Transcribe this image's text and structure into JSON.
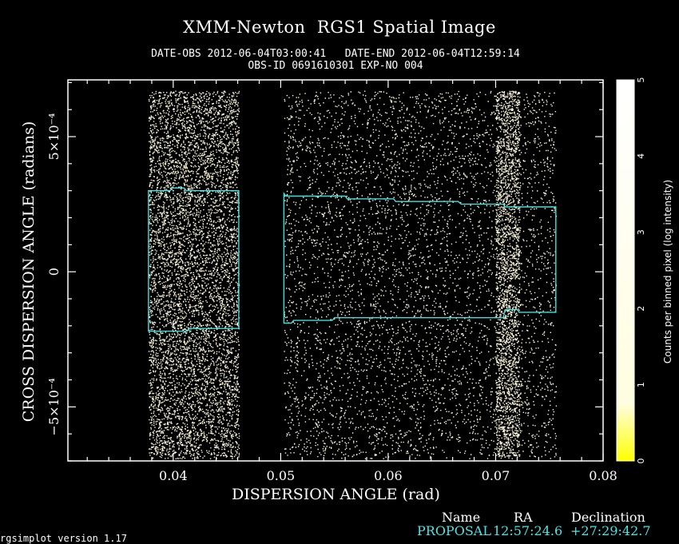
{
  "chart_data": {
    "type": "heatmap",
    "title": "XMM-Newton  RGS1 Spatial Image",
    "subtitle_line1": "DATE-OBS 2012-06-04T03:00:41   DATE-END 2012-06-04T12:59:14",
    "subtitle_line2": "OBS-ID 0691610301 EXP-NO 004",
    "xlabel": "DISPERSION ANGLE (rad)",
    "ylabel": "CROSS DISPERSION ANGLE (radians)",
    "xlim": [
      0.0302,
      0.08
    ],
    "ylim": [
      -0.0007,
      0.00071
    ],
    "x_ticks": [
      {
        "value": 0.04,
        "label": "0.04"
      },
      {
        "value": 0.05,
        "label": "0.05"
      },
      {
        "value": 0.06,
        "label": "0.06"
      },
      {
        "value": 0.07,
        "label": "0.07"
      },
      {
        "value": 0.08,
        "label": "0.08"
      }
    ],
    "y_ticks": [
      {
        "value": 0.0005,
        "label": "5×10⁻⁴"
      },
      {
        "value": 0,
        "label": "0"
      },
      {
        "value": -0.0005,
        "label": "−5×10⁻⁴"
      }
    ],
    "colorbar": {
      "label": "Counts per binned pixel (log intensity)",
      "min": 0,
      "max": 5,
      "ticks": [
        "0",
        "1",
        "2",
        "3",
        "4",
        "5"
      ],
      "color_low": "#ffff00",
      "color_high": "#ffffff"
    },
    "ccd_chips": [
      {
        "x_start": 0.0377,
        "x_end": 0.0461,
        "y_start": -0.00069,
        "y_end": 0.00067
      },
      {
        "x_start": 0.0503,
        "x_end": 0.0756,
        "y_start": -0.00069,
        "y_end": 0.00067
      }
    ],
    "source_regions": [
      {
        "color": "#40e0e0",
        "top": [
          [
            0.0377,
            0.0003
          ],
          [
            0.0397,
            0.0003
          ],
          [
            0.0399,
            0.00031
          ],
          [
            0.041,
            0.00031
          ],
          [
            0.0412,
            0.0003
          ],
          [
            0.0461,
            0.0003
          ]
        ],
        "bottom": [
          [
            0.0377,
            -0.00022
          ],
          [
            0.0413,
            -0.00022
          ],
          [
            0.0415,
            -0.00021
          ],
          [
            0.0461,
            -0.00021
          ]
        ]
      },
      {
        "color": "#40e0e0",
        "top": [
          [
            0.0503,
            0.00029
          ],
          [
            0.0505,
            0.00028
          ],
          [
            0.056,
            0.00028
          ],
          [
            0.0562,
            0.00027
          ],
          [
            0.0605,
            0.00027
          ],
          [
            0.0607,
            0.00026
          ],
          [
            0.0665,
            0.00026
          ],
          [
            0.0668,
            0.00025
          ],
          [
            0.0707,
            0.00025
          ],
          [
            0.0709,
            0.00024
          ],
          [
            0.0756,
            0.00024
          ]
        ],
        "bottom": [
          [
            0.0503,
            -0.00019
          ],
          [
            0.051,
            -0.00019
          ],
          [
            0.0512,
            -0.00018
          ],
          [
            0.0548,
            -0.00018
          ],
          [
            0.055,
            -0.00017
          ],
          [
            0.0707,
            -0.00017
          ],
          [
            0.0709,
            -0.00014
          ],
          [
            0.072,
            -0.00014
          ],
          [
            0.0722,
            -0.00015
          ],
          [
            0.0756,
            -0.00015
          ]
        ]
      }
    ],
    "background": "#000000",
    "point_color": "#fffbe0",
    "grid": false
  },
  "source_table": {
    "col_name": "Name",
    "col_ra": "RA",
    "col_dec": "Declination",
    "name": "PROPOSAL",
    "ra": "12:57:24.6",
    "dec": "+27:29:42.7"
  },
  "footer": "rgsimplot version 1.17"
}
